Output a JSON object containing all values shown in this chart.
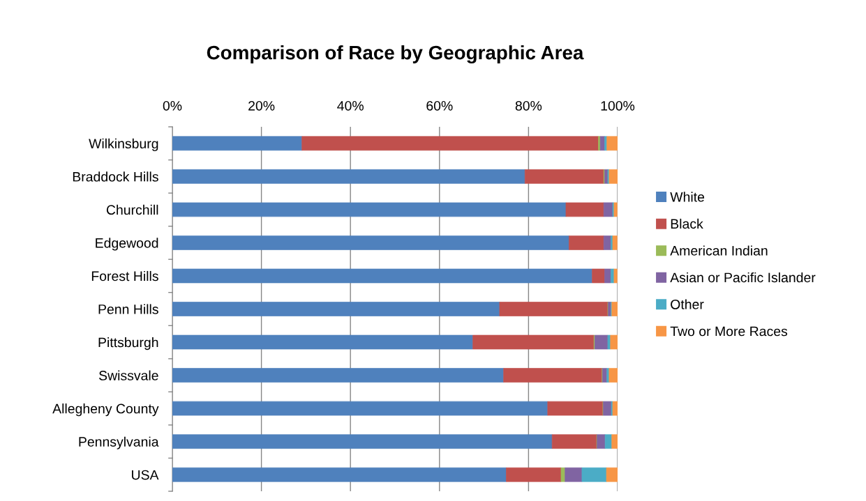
{
  "chart_data": {
    "type": "bar",
    "orientation": "horizontal",
    "stacked": true,
    "title": "Comparison of Race by Geographic Area",
    "categories": [
      "Wilkinsburg",
      "Braddock Hills",
      "Churchill",
      "Edgewood",
      "Forest Hills",
      "Penn Hills",
      "Pittsburgh",
      "Swissvale",
      "Allegheny County",
      "Pennsylvania",
      "USA"
    ],
    "series": [
      {
        "name": "White",
        "color": "#4f81bd",
        "values": [
          29.1,
          79.2,
          88.4,
          89.1,
          94.3,
          73.5,
          67.5,
          74.4,
          84.3,
          85.3,
          75.0
        ]
      },
      {
        "name": "Black",
        "color": "#c0504d",
        "values": [
          66.6,
          17.7,
          8.5,
          7.8,
          2.8,
          24.3,
          27.2,
          22.1,
          12.4,
          10.0,
          12.3
        ]
      },
      {
        "name": "American Indian",
        "color": "#9bbb59",
        "values": [
          0.4,
          0.2,
          null,
          null,
          null,
          0.1,
          0.2,
          0.1,
          0.1,
          0.1,
          0.9
        ]
      },
      {
        "name": "Asian or Pacific Islander",
        "color": "#8064a2",
        "values": [
          1.0,
          0.7,
          2.0,
          1.6,
          1.4,
          0.6,
          2.9,
          1.0,
          1.8,
          1.8,
          3.8
        ]
      },
      {
        "name": "Other",
        "color": "#4bacc6",
        "values": [
          0.5,
          0.3,
          0.3,
          0.4,
          0.7,
          0.2,
          0.6,
          0.5,
          0.3,
          1.5,
          5.5
        ]
      },
      {
        "name": "Two or More Races",
        "color": "#f79646",
        "values": [
          2.4,
          1.9,
          0.7,
          1.0,
          0.7,
          1.3,
          1.6,
          1.9,
          1.1,
          1.3,
          2.5
        ]
      }
    ],
    "xlim": [
      0,
      100
    ],
    "xticks": [
      {
        "value": 0,
        "label": "0%"
      },
      {
        "value": 20,
        "label": "20%"
      },
      {
        "value": 40,
        "label": "40%"
      },
      {
        "value": 60,
        "label": "60%"
      },
      {
        "value": 80,
        "label": "80%"
      },
      {
        "value": 100,
        "label": "100%"
      }
    ],
    "grid": "x",
    "legend": "right"
  }
}
